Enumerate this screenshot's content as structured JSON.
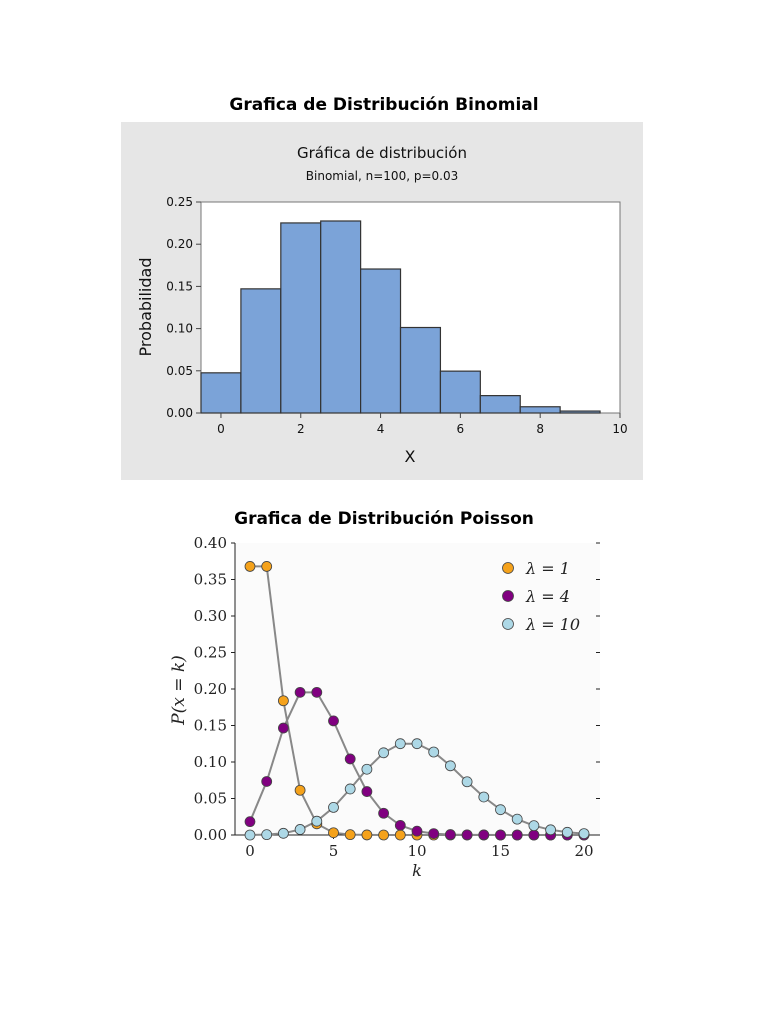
{
  "page": {
    "heading_binomial": "Grafica de Distribución Binomial",
    "heading_poisson": "Grafica de Distribución Poisson"
  },
  "chart_data": [
    {
      "type": "bar",
      "title": "Gráfica de distribución",
      "subtitle": "Binomial, n=100, p=0.03",
      "xlabel": "X",
      "ylabel": "Probabilidad",
      "x": [
        0,
        1,
        2,
        3,
        4,
        5,
        6,
        7,
        8,
        9
      ],
      "values": [
        0.0476,
        0.1471,
        0.2252,
        0.2275,
        0.1706,
        0.1013,
        0.0496,
        0.0206,
        0.0074,
        0.0023
      ],
      "xlim": [
        -0.5,
        10
      ],
      "ylim": [
        0,
        0.25
      ],
      "xticks": [
        "0",
        "2",
        "4",
        "6",
        "8",
        "10"
      ],
      "yticks": [
        "0.00",
        "0.05",
        "0.10",
        "0.15",
        "0.20",
        "0.25"
      ],
      "colors": {
        "bar": "#7ba3d8",
        "background": "#e6e6e6"
      }
    },
    {
      "type": "line",
      "title": "",
      "xlabel": "k",
      "ylabel": "P(x = k)",
      "x": [
        0,
        1,
        2,
        3,
        4,
        5,
        6,
        7,
        8,
        9,
        10,
        11,
        12,
        13,
        14,
        15,
        16,
        17,
        18,
        19,
        20
      ],
      "xlim": [
        0,
        20
      ],
      "ylim": [
        0,
        0.4
      ],
      "xticks": [
        "0",
        "5",
        "10",
        "15",
        "20"
      ],
      "yticks": [
        "0.00",
        "0.05",
        "0.10",
        "0.15",
        "0.20",
        "0.25",
        "0.30",
        "0.35",
        "0.40"
      ],
      "legend": "top-right",
      "series": [
        {
          "name": "λ = 1",
          "color": "#f5a21b",
          "values": [
            0.3679,
            0.3679,
            0.1839,
            0.0613,
            0.0153,
            0.0031,
            0.0005,
            0.0001,
            0.0,
            0.0,
            0.0,
            0.0,
            0.0,
            0.0,
            0.0,
            0.0,
            0.0,
            0.0,
            0.0,
            0.0,
            0.0
          ]
        },
        {
          "name": "λ = 4",
          "color": "#800080",
          "values": [
            0.0183,
            0.0733,
            0.1465,
            0.1954,
            0.1954,
            0.1563,
            0.1042,
            0.0595,
            0.0298,
            0.0132,
            0.0053,
            0.0019,
            0.0006,
            0.0002,
            0.0001,
            0.0,
            0.0,
            0.0,
            0.0,
            0.0,
            0.0
          ]
        },
        {
          "name": "λ = 10",
          "color": "#add8e6",
          "values": [
            0.0,
            0.0005,
            0.0023,
            0.0076,
            0.0189,
            0.0378,
            0.0631,
            0.0901,
            0.1126,
            0.1251,
            0.1251,
            0.1137,
            0.0948,
            0.0729,
            0.0521,
            0.0347,
            0.0217,
            0.0128,
            0.0071,
            0.0037,
            0.0019
          ]
        }
      ]
    }
  ]
}
